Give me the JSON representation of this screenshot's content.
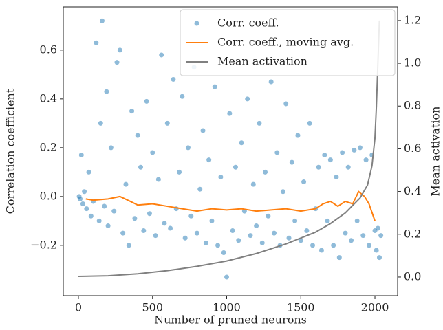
{
  "chart_data": {
    "type": "scatter",
    "xlabel": "Number of pruned neurons",
    "ylabel": "Correlation coefficient",
    "y2label": "Mean activation",
    "xlim": [
      -102,
      2153
    ],
    "ylim": [
      -0.406,
      0.777
    ],
    "y2lim": [
      -0.087,
      1.264
    ],
    "xticks": [
      0,
      500,
      1000,
      1500,
      2000
    ],
    "yticks": [
      {
        "value": -0.2,
        "label": "−0.2"
      },
      {
        "value": 0,
        "label": "0.0"
      },
      0.2,
      0.4,
      0.6
    ],
    "y2ticks": [
      {
        "value": 0,
        "label": "0.0"
      },
      0.2,
      0.4,
      0.6,
      0.8,
      {
        "value": 1,
        "label": "1.0"
      },
      1.2
    ],
    "legend": "upper right",
    "series": [
      {
        "name": "Corr. coeff.",
        "type": "scatter",
        "color": "#1f77b4",
        "axis": "y",
        "x": [
          5,
          12,
          20,
          30,
          40,
          55,
          70,
          85,
          100,
          120,
          140,
          150,
          160,
          175,
          190,
          200,
          220,
          240,
          260,
          280,
          300,
          320,
          340,
          360,
          380,
          400,
          420,
          440,
          460,
          480,
          500,
          520,
          540,
          560,
          580,
          600,
          620,
          640,
          660,
          680,
          700,
          720,
          740,
          760,
          780,
          800,
          820,
          840,
          860,
          880,
          900,
          920,
          940,
          960,
          980,
          1000,
          1020,
          1040,
          1060,
          1080,
          1100,
          1120,
          1140,
          1160,
          1180,
          1200,
          1220,
          1240,
          1260,
          1280,
          1300,
          1320,
          1340,
          1360,
          1380,
          1400,
          1420,
          1440,
          1460,
          1480,
          1500,
          1520,
          1540,
          1560,
          1580,
          1600,
          1620,
          1640,
          1660,
          1680,
          1700,
          1720,
          1740,
          1760,
          1780,
          1800,
          1820,
          1840,
          1860,
          1880,
          1900,
          1920,
          1940,
          1960,
          1980,
          2000,
          2010,
          2020,
          2030,
          2040
        ],
        "values": [
          0.0,
          -0.01,
          0.17,
          -0.03,
          0.02,
          -0.05,
          0.1,
          -0.08,
          -0.02,
          0.63,
          -0.1,
          0.3,
          0.72,
          -0.04,
          0.43,
          -0.12,
          0.2,
          -0.06,
          0.55,
          0.6,
          -0.15,
          0.05,
          -0.2,
          0.35,
          -0.09,
          0.25,
          0.12,
          -0.14,
          0.39,
          -0.07,
          0.18,
          -0.16,
          0.07,
          0.58,
          -0.11,
          0.3,
          -0.13,
          0.48,
          -0.05,
          0.1,
          0.41,
          -0.17,
          0.2,
          -0.08,
          0.53,
          -0.15,
          0.03,
          0.27,
          -0.19,
          0.15,
          -0.1,
          0.45,
          -0.2,
          0.08,
          -0.23,
          -0.33,
          0.34,
          -0.14,
          0.12,
          -0.18,
          0.22,
          -0.06,
          0.4,
          -0.16,
          0.05,
          -0.12,
          0.3,
          -0.19,
          0.1,
          -0.08,
          0.47,
          -0.15,
          0.18,
          -0.2,
          0.02,
          0.38,
          -0.17,
          0.14,
          -0.1,
          0.25,
          -0.18,
          0.06,
          -0.14,
          0.3,
          -0.2,
          -0.05,
          0.12,
          -0.22,
          0.17,
          -0.1,
          0.15,
          -0.2,
          0.08,
          -0.25,
          0.18,
          -0.15,
          0.12,
          -0.18,
          0.19,
          -0.1,
          0.2,
          -0.16,
          0.15,
          -0.2,
          0.17,
          -0.14,
          -0.22,
          -0.13,
          -0.25,
          -0.16
        ]
      },
      {
        "name": "Corr. coeff., moving avg.",
        "type": "line",
        "color": "#ff7f0e",
        "axis": "y",
        "x": [
          50,
          100,
          200,
          280,
          350,
          400,
          500,
          600,
          700,
          800,
          900,
          1000,
          1100,
          1200,
          1300,
          1400,
          1500,
          1600,
          1650,
          1700,
          1750,
          1800,
          1850,
          1890,
          1930,
          1960,
          2000
        ],
        "values": [
          -0.01,
          -0.015,
          -0.01,
          0.0,
          -0.02,
          -0.035,
          -0.03,
          -0.04,
          -0.05,
          -0.06,
          -0.05,
          -0.055,
          -0.05,
          -0.06,
          -0.055,
          -0.05,
          -0.06,
          -0.05,
          -0.03,
          -0.02,
          -0.04,
          -0.02,
          -0.03,
          0.02,
          0.0,
          -0.03,
          -0.1
        ]
      },
      {
        "name": "Mean activation",
        "type": "line",
        "color": "#808080",
        "axis": "y2",
        "x": [
          0,
          200,
          400,
          600,
          800,
          1000,
          1200,
          1400,
          1600,
          1700,
          1800,
          1900,
          1950,
          1980,
          2000,
          2010,
          2020,
          2030
        ],
        "values": [
          0.003,
          0.006,
          0.015,
          0.03,
          0.05,
          0.075,
          0.11,
          0.155,
          0.21,
          0.25,
          0.3,
          0.37,
          0.43,
          0.52,
          0.65,
          0.8,
          1.0,
          1.2
        ]
      }
    ]
  }
}
